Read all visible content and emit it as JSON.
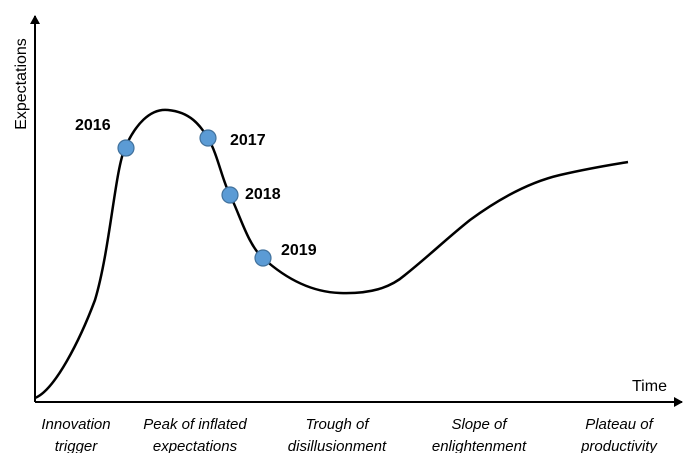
{
  "axes": {
    "y_label": "Expectations",
    "x_label": "Time"
  },
  "points": [
    {
      "label": "2016"
    },
    {
      "label": "2017"
    },
    {
      "label": "2018"
    },
    {
      "label": "2019"
    }
  ],
  "phases": [
    {
      "lines": [
        "Innovation",
        "trigger"
      ]
    },
    {
      "lines": [
        "Peak of inflated",
        "expectations"
      ]
    },
    {
      "lines": [
        "Trough of",
        "disillusionment"
      ]
    },
    {
      "lines": [
        "Slope of",
        "enlightenment"
      ]
    },
    {
      "lines": [
        "Plateau of",
        "productivity"
      ]
    }
  ]
}
